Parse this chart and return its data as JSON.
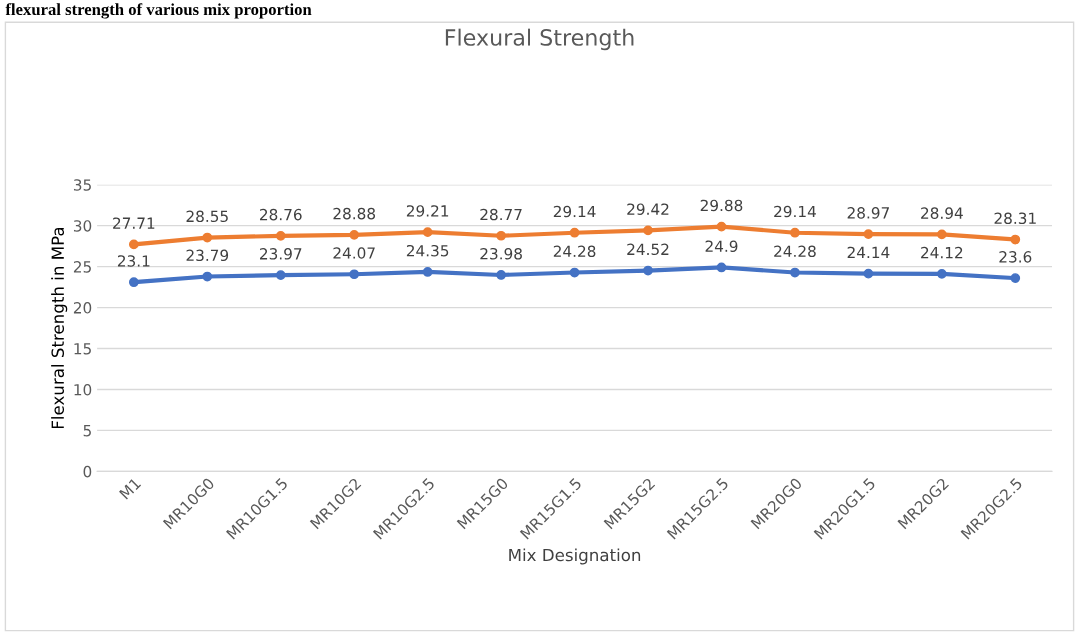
{
  "chart_data": {
    "type": "line",
    "title": "Flexural Strength",
    "xlabel": "Mix Designation",
    "ylabel": "Flexural Strength in MPa",
    "annotations": [
      "flexural strength of various mix proportion"
    ],
    "categories": [
      "M1",
      "MR10G0",
      "MR10G1.5",
      "MR10G2",
      "MR10G2.5",
      "MR15G0",
      "MR15G1.5",
      "MR15G2",
      "MR15G2.5",
      "MR20G0",
      "MR20G1.5",
      "MR20G2",
      "MR20G2.5"
    ],
    "series": [
      {
        "color": "#4472c4",
        "values": [
          23.1,
          23.79,
          23.97,
          24.07,
          24.35,
          23.98,
          24.28,
          24.52,
          24.9,
          24.28,
          24.14,
          24.12,
          23.6
        ]
      },
      {
        "color": "#ed7d31",
        "values": [
          27.71,
          28.55,
          28.76,
          28.88,
          29.21,
          28.77,
          29.14,
          29.42,
          29.88,
          29.14,
          28.97,
          28.94,
          28.31
        ]
      }
    ],
    "ylim": [
      0,
      35
    ],
    "yticks": [
      0,
      5,
      10,
      15,
      20,
      25,
      30,
      35
    ],
    "grid": "y",
    "marker": "circle",
    "line_style": "solid",
    "data_labels": true
  }
}
